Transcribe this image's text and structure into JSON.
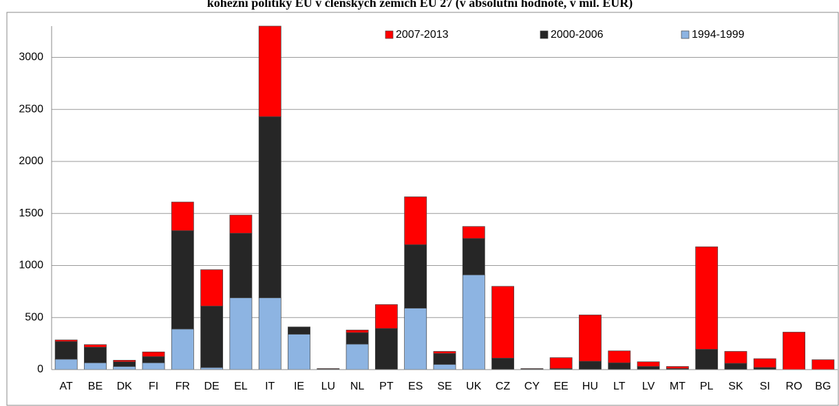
{
  "chart_data": {
    "type": "stacked_bar",
    "title": "kohezní politiky EU v členských zemích EU 27 (v absolutní hodnotě, v mil. EUR)",
    "categories": [
      "AT",
      "BE",
      "DK",
      "FI",
      "FR",
      "DE",
      "EL",
      "IT",
      "IE",
      "LU",
      "NL",
      "PT",
      "ES",
      "SE",
      "UK",
      "CZ",
      "CY",
      "EE",
      "HU",
      "LT",
      "LV",
      "MT",
      "PL",
      "SK",
      "SI",
      "RO",
      "BG"
    ],
    "series": [
      {
        "name": "2007-2013",
        "color": "#ff0000",
        "values": [
          15,
          25,
          15,
          45,
          275,
          350,
          175,
          870,
          0,
          5,
          25,
          230,
          460,
          20,
          115,
          690,
          5,
          105,
          445,
          115,
          45,
          20,
          985,
          115,
          85,
          360,
          95
        ]
      },
      {
        "name": "2000-2006",
        "color": "#262626",
        "values": [
          170,
          150,
          45,
          60,
          945,
          590,
          620,
          1740,
          70,
          0,
          110,
          395,
          610,
          105,
          350,
          110,
          5,
          10,
          80,
          65,
          30,
          10,
          195,
          60,
          20,
          0,
          0
        ]
      },
      {
        "name": "1994-1999",
        "color": "#8db4e2",
        "values": [
          100,
          65,
          30,
          65,
          390,
          20,
          690,
          690,
          340,
          5,
          245,
          0,
          590,
          50,
          910,
          0,
          0,
          0,
          0,
          0,
          0,
          0,
          0,
          0,
          0,
          0,
          0
        ]
      }
    ],
    "ylim": [
      0,
      3300
    ],
    "yticks": [
      0,
      500,
      1000,
      1500,
      2000,
      2500,
      3000
    ],
    "grid": true,
    "legend": "top-right"
  }
}
